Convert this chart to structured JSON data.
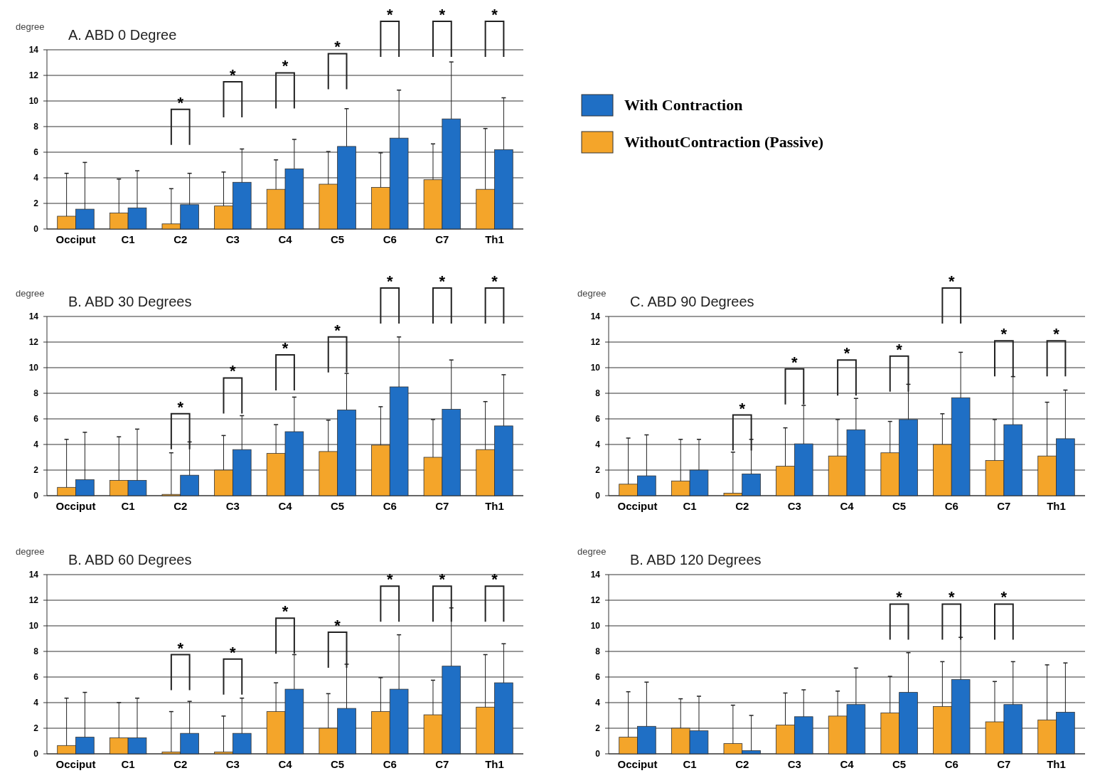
{
  "chart_data": [
    {
      "type": "bar",
      "title": "A. ABD 0 Degree",
      "ylabel": "degree",
      "categories": [
        "Occiput",
        "C1",
        "C2",
        "C3",
        "C4",
        "C5",
        "C6",
        "C7",
        "Th1"
      ],
      "ylim": [
        0,
        14
      ],
      "yticks": [
        0,
        2,
        4,
        6,
        8,
        10,
        12,
        14
      ],
      "grid": true,
      "legend": "right",
      "series": [
        {
          "name": "WithoutContraction (Passive)",
          "color": "#f4a52a",
          "values": [
            1.0,
            1.25,
            0.4,
            1.8,
            3.1,
            3.5,
            3.25,
            3.85,
            3.1
          ],
          "errors": [
            [
              1.0,
              4.35
            ],
            [
              1.25,
              3.9
            ],
            [
              0.4,
              3.15
            ],
            [
              1.8,
              4.45
            ],
            [
              3.1,
              5.4
            ],
            [
              3.5,
              6.05
            ],
            [
              3.25,
              5.95
            ],
            [
              3.85,
              6.65
            ],
            [
              3.1,
              7.85
            ]
          ]
        },
        {
          "name": "With Contraction",
          "color": "#1f6fc5",
          "values": [
            1.55,
            1.65,
            1.9,
            3.65,
            4.7,
            6.45,
            7.1,
            8.6,
            6.2
          ],
          "errors": [
            [
              1.55,
              5.2
            ],
            [
              1.65,
              4.55
            ],
            [
              1.9,
              4.35
            ],
            [
              3.65,
              6.25
            ],
            [
              4.7,
              7.0
            ],
            [
              6.45,
              9.4
            ],
            [
              7.1,
              10.85
            ],
            [
              8.6,
              13.05
            ],
            [
              6.2,
              10.25
            ]
          ]
        }
      ],
      "annotations": [
        "*",
        "*",
        "*",
        "*",
        "*",
        "*",
        "*"
      ]
    },
    {
      "type": "bar",
      "title": "B. ABD 30 Degrees",
      "ylabel": "degree",
      "categories": [
        "Occiput",
        "C1",
        "C2",
        "C3",
        "C4",
        "C5",
        "C6",
        "C7",
        "Th1"
      ],
      "ylim": [
        0,
        14
      ],
      "yticks": [
        0,
        2,
        4,
        6,
        8,
        10,
        12,
        14
      ],
      "grid": true,
      "series": [
        {
          "color": "#f4a52a",
          "values": [
            0.65,
            1.2,
            0.1,
            2.0,
            3.3,
            3.45,
            3.95,
            3.0,
            3.6
          ],
          "errors": [
            [
              0.65,
              4.4
            ],
            [
              1.2,
              4.6
            ],
            [
              0.1,
              3.35
            ],
            [
              2.0,
              4.7
            ],
            [
              3.3,
              5.55
            ],
            [
              3.45,
              5.9
            ],
            [
              3.95,
              6.95
            ],
            [
              3.0,
              5.95
            ],
            [
              3.6,
              7.35
            ]
          ]
        },
        {
          "color": "#1f6fc5",
          "values": [
            1.25,
            1.2,
            1.6,
            3.6,
            5.0,
            6.7,
            8.5,
            6.75,
            5.45
          ],
          "errors": [
            [
              1.25,
              4.95
            ],
            [
              1.2,
              5.2
            ],
            [
              1.6,
              4.2
            ],
            [
              3.6,
              6.25
            ],
            [
              5.0,
              7.7
            ],
            [
              6.7,
              9.55
            ],
            [
              8.5,
              12.4
            ],
            [
              6.75,
              10.6
            ],
            [
              5.45,
              9.45
            ]
          ]
        }
      ],
      "annotations": [
        "*",
        "*",
        "*",
        "*",
        "*",
        "*",
        "*"
      ]
    },
    {
      "type": "bar",
      "title": "C. ABD 90 Degrees",
      "ylabel": "degree",
      "categories": [
        "Occiput",
        "C1",
        "C2",
        "C3",
        "C4",
        "C5",
        "C6",
        "C7",
        "Th1"
      ],
      "ylim": [
        0,
        14
      ],
      "yticks": [
        0,
        2,
        4,
        6,
        8,
        10,
        12,
        14
      ],
      "grid": true,
      "series": [
        {
          "color": "#f4a52a",
          "values": [
            0.9,
            1.15,
            0.2,
            2.3,
            3.1,
            3.35,
            4.0,
            2.75,
            3.1
          ],
          "errors": [
            [
              0.9,
              4.5
            ],
            [
              1.15,
              4.4
            ],
            [
              0.2,
              3.4
            ],
            [
              2.3,
              5.3
            ],
            [
              3.1,
              5.95
            ],
            [
              3.35,
              5.8
            ],
            [
              4.0,
              6.4
            ],
            [
              2.75,
              5.95
            ],
            [
              3.1,
              7.3
            ]
          ]
        },
        {
          "color": "#1f6fc5",
          "values": [
            1.55,
            2.0,
            1.7,
            4.05,
            5.15,
            5.95,
            7.65,
            5.55,
            4.45
          ],
          "errors": [
            [
              1.55,
              4.75
            ],
            [
              2.0,
              4.4
            ],
            [
              1.7,
              4.4
            ],
            [
              4.05,
              7.05
            ],
            [
              5.15,
              7.6
            ],
            [
              5.95,
              8.7
            ],
            [
              7.65,
              11.2
            ],
            [
              5.55,
              9.3
            ],
            [
              4.45,
              8.25
            ]
          ]
        }
      ],
      "annotations": [
        "*",
        "*",
        "*",
        "*",
        "*",
        "*",
        "*"
      ]
    },
    {
      "type": "bar",
      "title": "B. ABD 60 Degrees",
      "ylabel": "degree",
      "categories": [
        "Occiput",
        "C1",
        "C2",
        "C3",
        "C4",
        "C5",
        "C6",
        "C7",
        "Th1"
      ],
      "ylim": [
        0,
        14
      ],
      "yticks": [
        0,
        2,
        4,
        6,
        8,
        10,
        12,
        14
      ],
      "grid": true,
      "series": [
        {
          "color": "#f4a52a",
          "values": [
            0.65,
            1.25,
            0.15,
            0.15,
            3.3,
            2.0,
            3.3,
            3.05,
            3.65
          ],
          "errors": [
            [
              0.65,
              4.35
            ],
            [
              1.25,
              4.0
            ],
            [
              0.15,
              3.3
            ],
            [
              0.15,
              2.95
            ],
            [
              3.3,
              5.55
            ],
            [
              2.0,
              4.7
            ],
            [
              3.3,
              5.95
            ],
            [
              3.05,
              5.75
            ],
            [
              3.65,
              7.75
            ]
          ]
        },
        {
          "color": "#1f6fc5",
          "values": [
            1.3,
            1.25,
            1.6,
            1.6,
            5.05,
            3.55,
            5.05,
            6.85,
            5.55
          ],
          "errors": [
            [
              1.3,
              4.8
            ],
            [
              1.25,
              4.35
            ],
            [
              1.6,
              4.1
            ],
            [
              1.6,
              4.35
            ],
            [
              5.05,
              7.75
            ],
            [
              3.55,
              7.0
            ],
            [
              5.05,
              9.3
            ],
            [
              6.85,
              11.4
            ],
            [
              5.55,
              8.6
            ]
          ]
        }
      ],
      "annotations": [
        "*",
        "*",
        "*",
        "*",
        "*",
        "*",
        "*"
      ]
    },
    {
      "type": "bar",
      "title": "B. ABD 120 Degrees",
      "ylabel": "degree",
      "categories": [
        "Occiput",
        "C1",
        "C2",
        "C3",
        "C4",
        "C5",
        "C6",
        "C7",
        "Th1"
      ],
      "ylim": [
        0,
        14
      ],
      "yticks": [
        0,
        2,
        4,
        6,
        8,
        10,
        12,
        14
      ],
      "grid": true,
      "series": [
        {
          "color": "#f4a52a",
          "values": [
            1.3,
            2.0,
            0.8,
            2.25,
            2.95,
            3.2,
            3.7,
            2.5,
            2.65
          ],
          "errors": [
            [
              1.3,
              4.85
            ],
            [
              2.0,
              4.3
            ],
            [
              0.8,
              3.8
            ],
            [
              2.25,
              4.75
            ],
            [
              2.95,
              4.9
            ],
            [
              3.2,
              6.05
            ],
            [
              3.7,
              7.2
            ],
            [
              2.5,
              5.65
            ],
            [
              2.65,
              6.95
            ]
          ]
        },
        {
          "color": "#1f6fc5",
          "values": [
            2.15,
            1.8,
            0.25,
            2.9,
            3.85,
            4.8,
            5.8,
            3.85,
            3.25
          ],
          "errors": [
            [
              2.15,
              5.6
            ],
            [
              1.8,
              4.5
            ],
            [
              0.25,
              3.0
            ],
            [
              2.9,
              5.0
            ],
            [
              3.85,
              6.7
            ],
            [
              4.8,
              7.9
            ],
            [
              5.8,
              9.1
            ],
            [
              3.85,
              7.2
            ],
            [
              3.25,
              7.1
            ]
          ]
        }
      ],
      "annotations": [
        "*",
        "*",
        "*"
      ]
    }
  ]
}
